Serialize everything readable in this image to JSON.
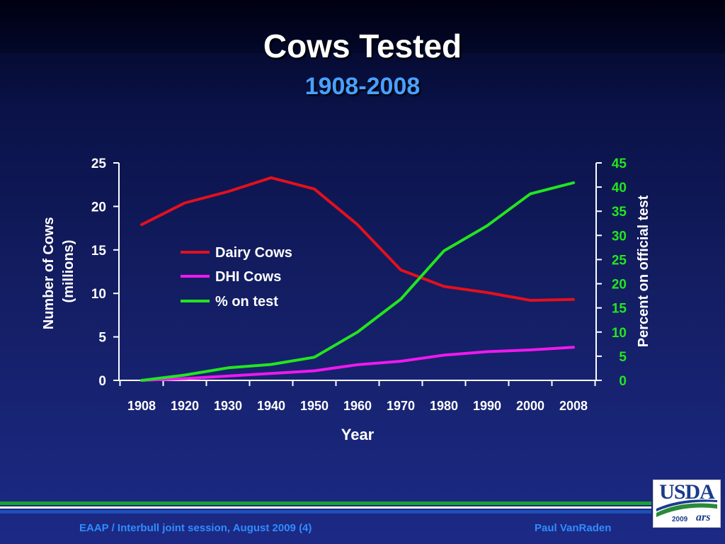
{
  "slide": {
    "title": "Cows Tested",
    "subtitle": "1908-2008",
    "footer_left": "EAAP / Interbull joint session, August 2009 (4)",
    "footer_right": "Paul VanRaden"
  },
  "logo": {
    "text": "USDA",
    "year": "2009",
    "agency": "ars"
  },
  "colors": {
    "dairy": "#e3101c",
    "dhi": "#ee19ee",
    "pct": "#22e61e",
    "right_axis_text": "#22e61e",
    "text": "#ffffff"
  },
  "chart_data": {
    "type": "line",
    "x": [
      1908,
      1920,
      1930,
      1940,
      1950,
      1960,
      1970,
      1980,
      1990,
      2000,
      2008
    ],
    "x_tick_labels": [
      "1908",
      "1920",
      "1930",
      "1940",
      "1950",
      "1960",
      "1970",
      "1980",
      "1990",
      "2000",
      "2008"
    ],
    "xlabel": "Year",
    "ylabel": "Number of Cows (millions)",
    "ylabel_lines": [
      "Number of Cows",
      "(millions)"
    ],
    "ylim": [
      0,
      25
    ],
    "y_ticks": [
      0,
      5,
      10,
      15,
      20,
      25
    ],
    "y2label": "Percent on official test",
    "y2lim": [
      0,
      45
    ],
    "y2_ticks": [
      0,
      5,
      10,
      15,
      20,
      25,
      30,
      35,
      40,
      45
    ],
    "grid": false,
    "legend_position": "upper-left inside plot",
    "series": [
      {
        "name": "Dairy Cows",
        "axis": "left",
        "values": [
          17.9,
          20.4,
          21.7,
          23.3,
          22.0,
          17.9,
          12.7,
          10.8,
          10.1,
          9.2,
          9.3
        ]
      },
      {
        "name": "DHI Cows",
        "axis": "left",
        "values": [
          0.0,
          0.2,
          0.5,
          0.8,
          1.1,
          1.8,
          2.2,
          2.9,
          3.3,
          3.5,
          3.8
        ]
      },
      {
        "name": "% on test",
        "axis": "right",
        "values": [
          0.0,
          1.1,
          2.6,
          3.3,
          4.8,
          10.0,
          16.8,
          26.8,
          32.0,
          38.6,
          40.9
        ]
      }
    ]
  }
}
